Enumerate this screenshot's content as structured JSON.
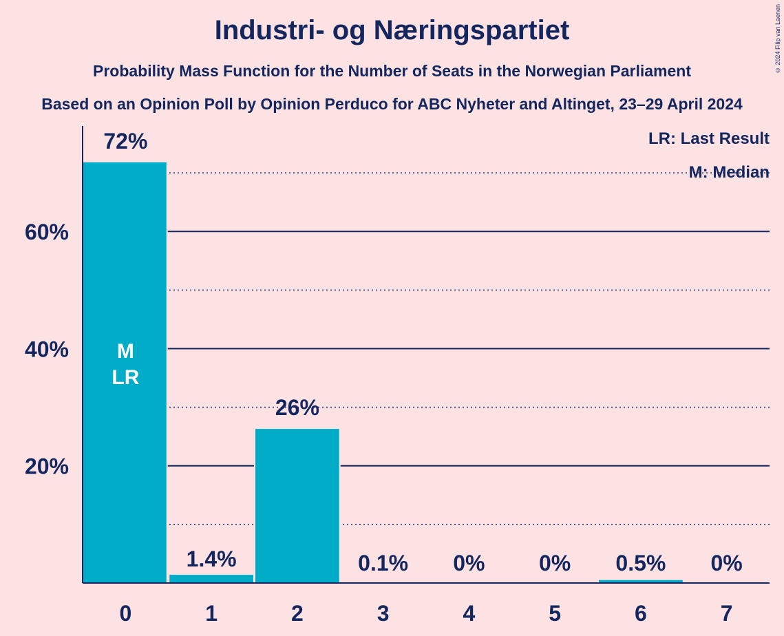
{
  "title": "Industri- og Næringspartiet",
  "subtitle": "Probability Mass Function for the Number of Seats in the Norwegian Parliament",
  "source": "Based on an Opinion Poll by Opinion Perduco for ABC Nyheter and Altinget, 23–29 April 2024",
  "copyright": "© 2024 Filip van Laenen",
  "legend": {
    "last_result": "LR: Last Result",
    "median": "M: Median"
  },
  "colors": {
    "bar": "#00acc8",
    "text": "#13265e",
    "background": "#fde2e4"
  },
  "chart_data": {
    "type": "bar",
    "title": "Industri- og Næringspartiet",
    "xlabel": "",
    "ylabel": "",
    "categories": [
      "0",
      "1",
      "2",
      "3",
      "4",
      "5",
      "6",
      "7"
    ],
    "values": [
      71.8,
      1.4,
      26.3,
      0.1,
      0,
      0,
      0.5,
      0
    ],
    "value_labels": [
      "72%",
      "1.4%",
      "26%",
      "0.1%",
      "0%",
      "0%",
      "0.5%",
      "0%"
    ],
    "ylim": [
      0,
      78
    ],
    "yticks": [
      20,
      40,
      60
    ],
    "ytick_labels": [
      "20%",
      "40%",
      "60%"
    ],
    "minor_gridlines": [
      10,
      30,
      50,
      70
    ],
    "median_seat": 0,
    "last_result_seat": 0,
    "median_marker": "M",
    "last_result_marker": "LR"
  }
}
